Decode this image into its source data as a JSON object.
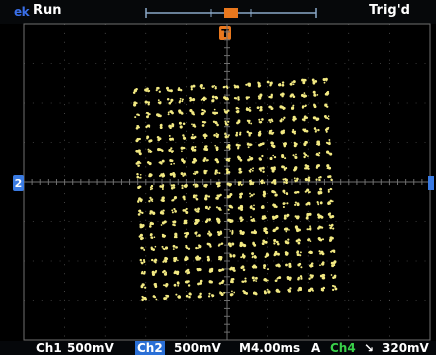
{
  "brand": "ek",
  "acq_status": "Run",
  "trigger_status": "Trig'd",
  "markers": {
    "trigger_position": "T",
    "channel_ground": "2"
  },
  "readout": {
    "ch1_label": "Ch1",
    "ch1_scale": "500mV",
    "ch2_label": "Ch2",
    "ch2_scale": "500mV",
    "timebase": "M4.00ms",
    "trigger_mode": "A",
    "trigger_source": "Ch4",
    "trigger_slope_symbol": "↘",
    "trigger_level": "320mV"
  },
  "display": {
    "mode": "XY",
    "pattern": "constellation-18x18",
    "trace_color": "#f2e982",
    "grid_color": "#6f6f6f",
    "marker_color": "#e9781e"
  }
}
